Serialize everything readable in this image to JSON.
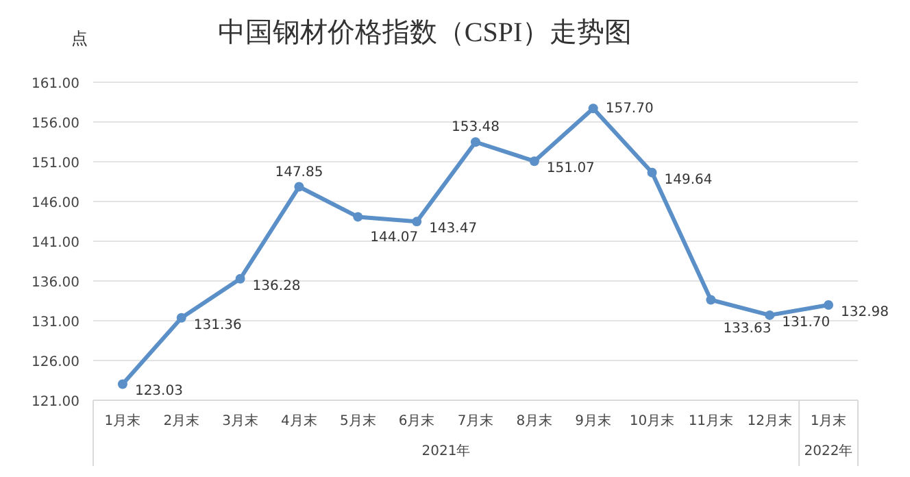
{
  "chart_data": {
    "type": "line",
    "title": "中国钢材价格指数（CSPI）走势图",
    "ylabel": "点",
    "categories": [
      "1月末",
      "2月末",
      "3月末",
      "4月末",
      "5月末",
      "6月末",
      "7月末",
      "8月末",
      "9月末",
      "10月末",
      "11月末",
      "12月末",
      "1月末"
    ],
    "series": [
      {
        "color": "#5b8fc7",
        "values": [
          123.03,
          131.36,
          136.28,
          147.85,
          144.07,
          143.47,
          153.48,
          151.07,
          157.7,
          149.64,
          133.63,
          131.7,
          132.98
        ],
        "value_labels": [
          "123.03",
          "131.36",
          "136.28",
          "147.85",
          "144.07",
          "143.47",
          "153.48",
          "151.07",
          "157.70",
          "149.64",
          "133.63",
          "131.70",
          "132.98"
        ]
      }
    ],
    "ylim": [
      121,
      161
    ],
    "yticks": [
      {
        "value": 121,
        "label": "121.00"
      },
      {
        "value": 126,
        "label": "126.00"
      },
      {
        "value": 131,
        "label": "131.00"
      },
      {
        "value": 136,
        "label": "136.00"
      },
      {
        "value": 141,
        "label": "141.00"
      },
      {
        "value": 146,
        "label": "146.00"
      },
      {
        "value": 151,
        "label": "151.00"
      },
      {
        "value": 156,
        "label": "156.00"
      },
      {
        "value": 161,
        "label": "161.00"
      }
    ],
    "annotations": [
      "2021年",
      "2022年"
    ],
    "grid": "y",
    "marker": "circle",
    "line_style": "solid"
  }
}
